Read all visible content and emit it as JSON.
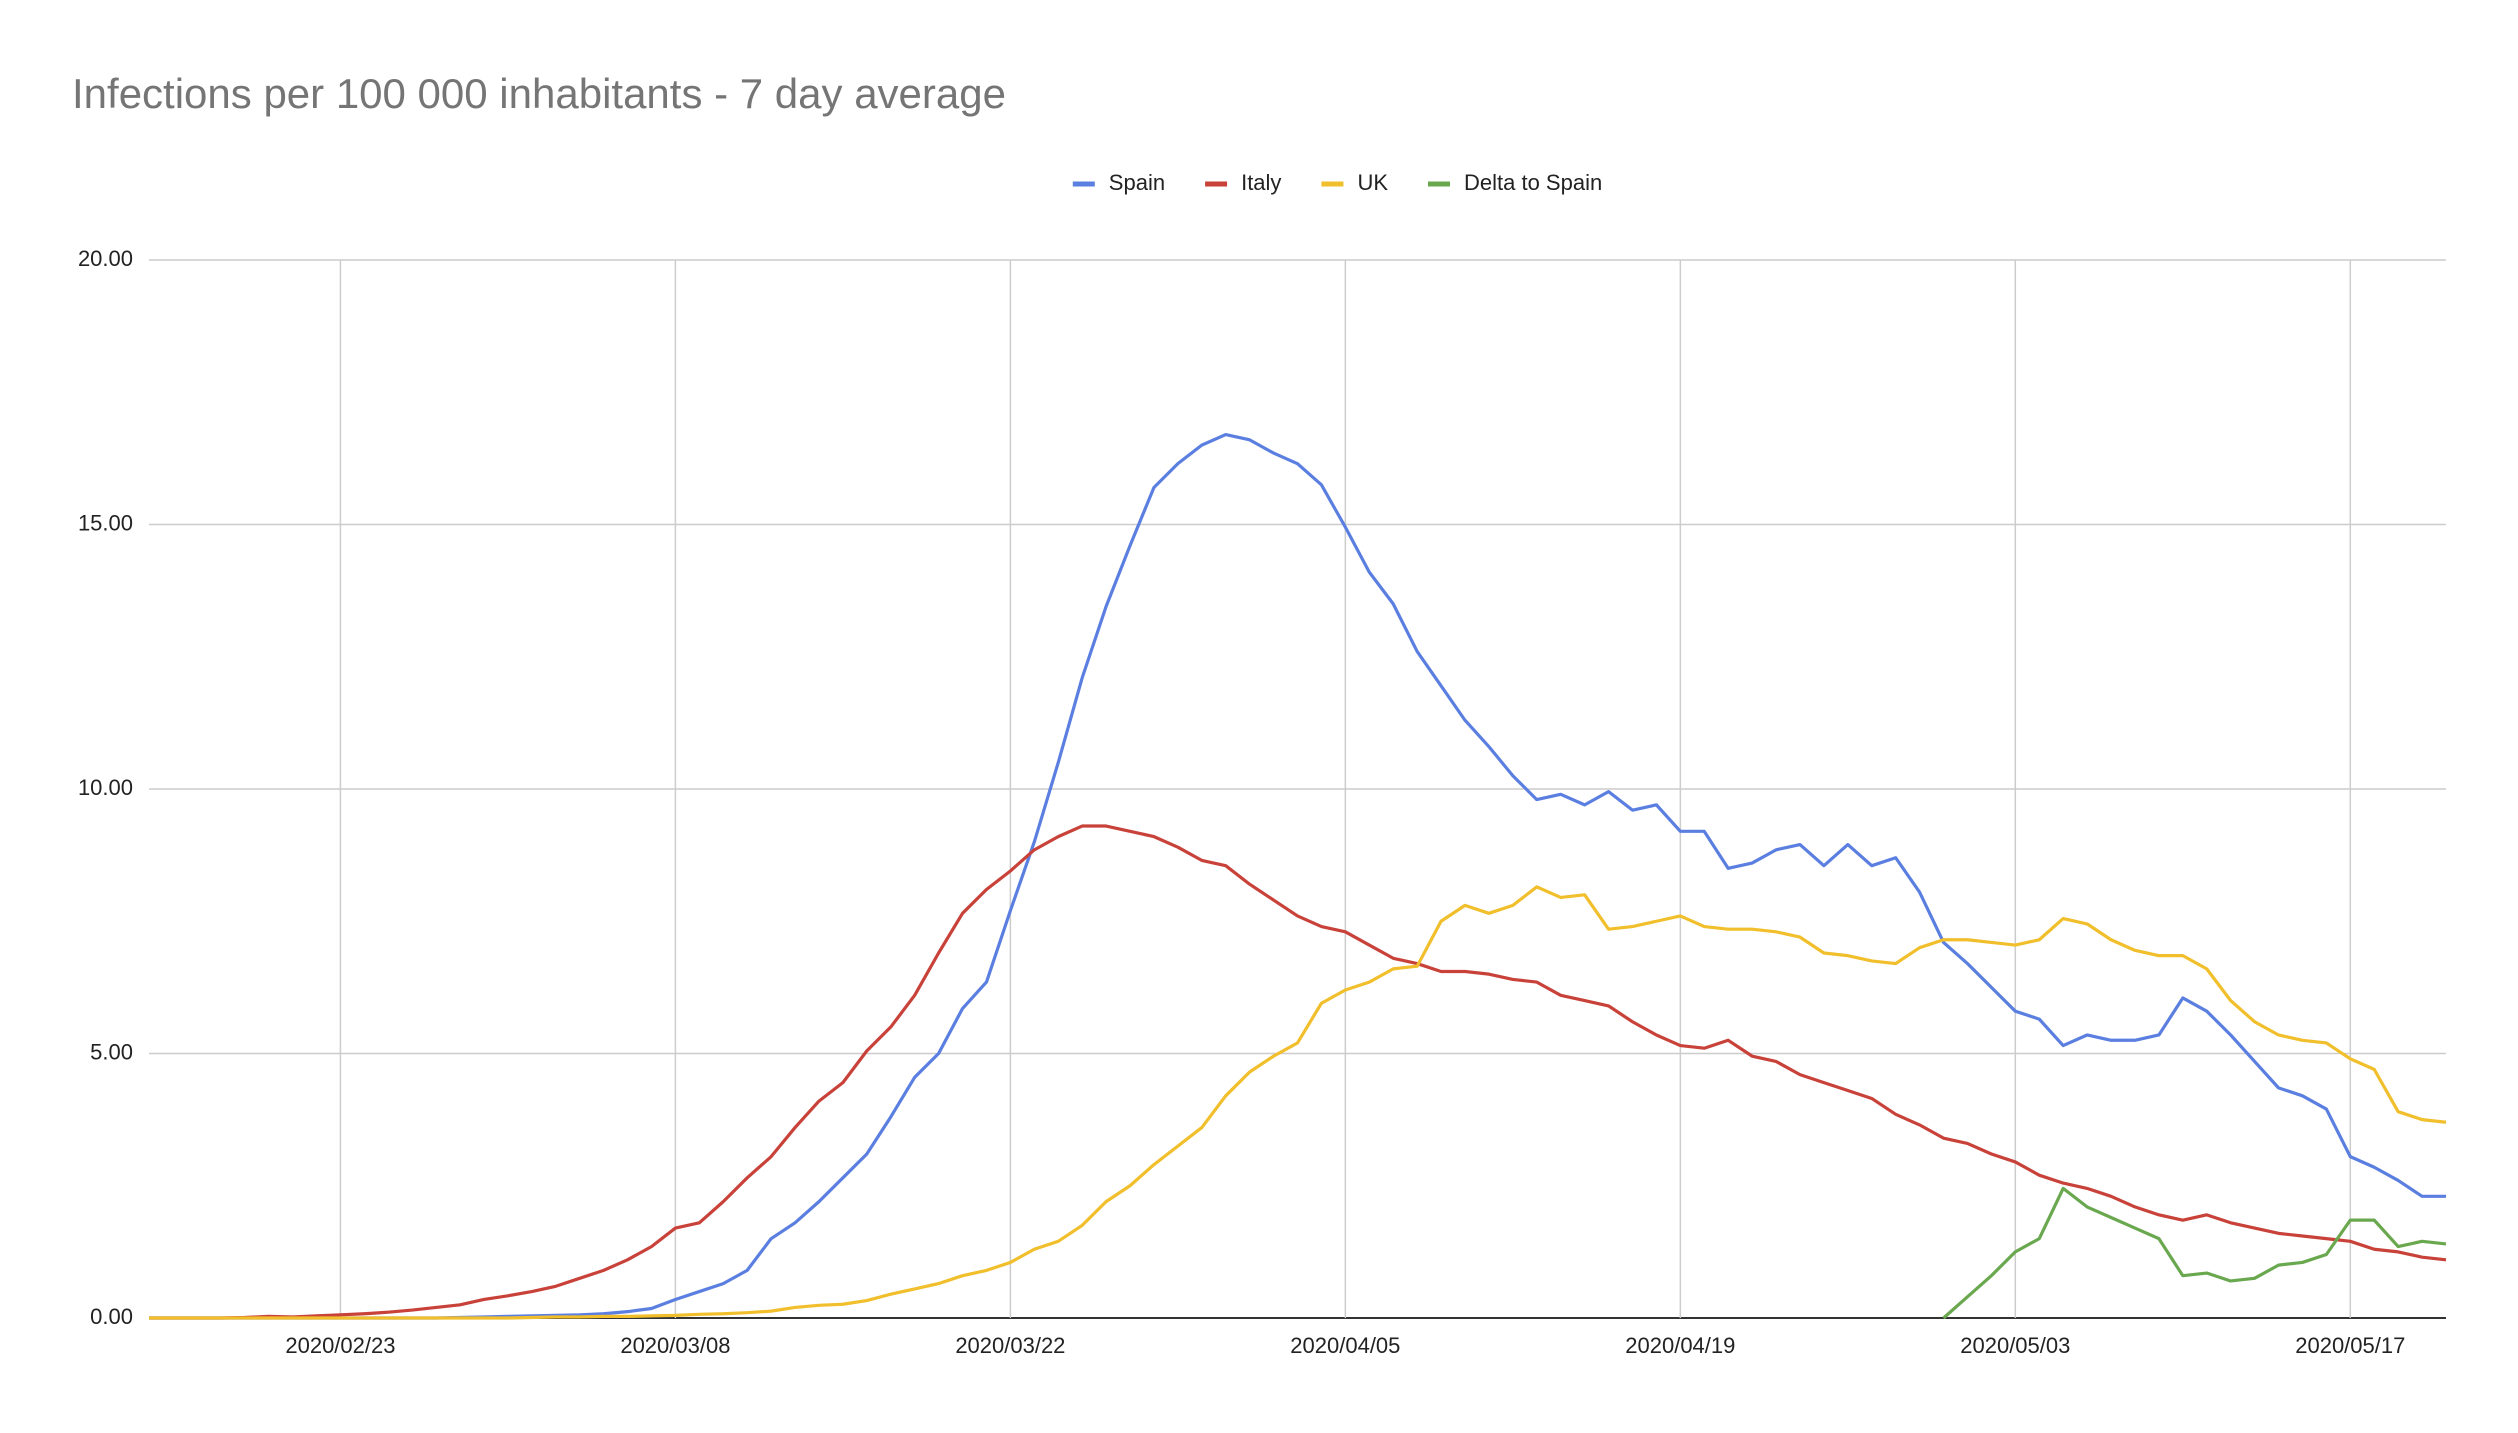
{
  "chart_data": {
    "type": "line",
    "title": "Infections per 100 000 inhabitants - 7 day average",
    "x": [
      "2020/02/15",
      "2020/02/16",
      "2020/02/17",
      "2020/02/18",
      "2020/02/19",
      "2020/02/20",
      "2020/02/21",
      "2020/02/22",
      "2020/02/23",
      "2020/02/24",
      "2020/02/25",
      "2020/02/26",
      "2020/02/27",
      "2020/02/28",
      "2020/02/29",
      "2020/03/01",
      "2020/03/02",
      "2020/03/03",
      "2020/03/04",
      "2020/03/05",
      "2020/03/06",
      "2020/03/07",
      "2020/03/08",
      "2020/03/09",
      "2020/03/10",
      "2020/03/11",
      "2020/03/12",
      "2020/03/13",
      "2020/03/14",
      "2020/03/15",
      "2020/03/16",
      "2020/03/17",
      "2020/03/18",
      "2020/03/19",
      "2020/03/20",
      "2020/03/21",
      "2020/03/22",
      "2020/03/23",
      "2020/03/24",
      "2020/03/25",
      "2020/03/26",
      "2020/03/27",
      "2020/03/28",
      "2020/03/29",
      "2020/03/30",
      "2020/03/31",
      "2020/04/01",
      "2020/04/02",
      "2020/04/03",
      "2020/04/04",
      "2020/04/05",
      "2020/04/06",
      "2020/04/07",
      "2020/04/08",
      "2020/04/09",
      "2020/04/10",
      "2020/04/11",
      "2020/04/12",
      "2020/04/13",
      "2020/04/14",
      "2020/04/15",
      "2020/04/16",
      "2020/04/17",
      "2020/04/18",
      "2020/04/19",
      "2020/04/20",
      "2020/04/21",
      "2020/04/22",
      "2020/04/23",
      "2020/04/24",
      "2020/04/25",
      "2020/04/26",
      "2020/04/27",
      "2020/04/28",
      "2020/04/29",
      "2020/04/30",
      "2020/05/01",
      "2020/05/02",
      "2020/05/03",
      "2020/05/04",
      "2020/05/05",
      "2020/05/06",
      "2020/05/07",
      "2020/05/08",
      "2020/05/09",
      "2020/05/10",
      "2020/05/11",
      "2020/05/12",
      "2020/05/13",
      "2020/05/14",
      "2020/05/15",
      "2020/05/16",
      "2020/05/17",
      "2020/05/18",
      "2020/05/19",
      "2020/05/20",
      "2020/05/21"
    ],
    "xlim": [
      "2020/02/15",
      "2020/05/21"
    ],
    "xticks": [
      "2020/02/23",
      "2020/03/08",
      "2020/03/22",
      "2020/04/05",
      "2020/04/19",
      "2020/05/03",
      "2020/05/17"
    ],
    "ylim": [
      0,
      20
    ],
    "yticks": [
      {
        "value": 0,
        "label": "0.00"
      },
      {
        "value": 5,
        "label": "5.00"
      },
      {
        "value": 10,
        "label": "10.00"
      },
      {
        "value": 15,
        "label": "15.00"
      },
      {
        "value": 20,
        "label": "20.00"
      }
    ],
    "grid": true,
    "legend": "top",
    "series": [
      {
        "name": "Spain",
        "color": "#5b7fe0",
        "values": [
          0,
          0,
          0,
          0,
          0,
          0,
          0,
          0,
          0,
          0,
          0,
          0,
          0,
          0.01,
          0.02,
          0.03,
          0.04,
          0.05,
          0.06,
          0.08,
          0.12,
          0.18,
          0.35,
          0.5,
          0.65,
          0.9,
          1.5,
          1.8,
          2.2,
          2.65,
          3.1,
          3.8,
          4.55,
          5.0,
          5.85,
          6.35,
          7.7,
          9.0,
          10.5,
          12.1,
          13.45,
          14.6,
          15.7,
          16.15,
          16.5,
          16.7,
          16.6,
          16.35,
          16.15,
          15.75,
          14.95,
          14.1,
          13.5,
          12.6,
          11.95,
          11.3,
          10.8,
          10.25,
          9.8,
          9.9,
          9.7,
          9.95,
          9.6,
          9.7,
          9.2,
          9.2,
          8.5,
          8.6,
          8.85,
          8.95,
          8.55,
          8.95,
          8.55,
          8.7,
          8.05,
          7.1,
          6.7,
          6.25,
          5.8,
          5.65,
          5.15,
          5.35,
          5.25,
          5.25,
          5.35,
          6.05,
          5.8,
          5.35,
          4.85,
          4.35,
          4.2,
          3.95,
          3.05,
          2.85,
          2.6,
          2.3,
          2.3
        ]
      },
      {
        "name": "Italy",
        "color": "#c8423a",
        "values": [
          0,
          0,
          0,
          0,
          0.01,
          0.03,
          0.02,
          0.04,
          0.06,
          0.08,
          0.11,
          0.15,
          0.2,
          0.25,
          0.35,
          0.42,
          0.5,
          0.6,
          0.75,
          0.9,
          1.1,
          1.35,
          1.7,
          1.8,
          2.2,
          2.65,
          3.05,
          3.6,
          4.1,
          4.45,
          5.05,
          5.5,
          6.1,
          6.9,
          7.65,
          8.1,
          8.45,
          8.85,
          9.1,
          9.3,
          9.3,
          9.2,
          9.1,
          8.9,
          8.65,
          8.55,
          8.2,
          7.9,
          7.6,
          7.4,
          7.3,
          7.05,
          6.8,
          6.7,
          6.55,
          6.55,
          6.5,
          6.4,
          6.35,
          6.1,
          6.0,
          5.9,
          5.6,
          5.35,
          5.15,
          5.1,
          5.25,
          4.95,
          4.85,
          4.6,
          4.45,
          4.3,
          4.15,
          3.85,
          3.65,
          3.4,
          3.3,
          3.1,
          2.95,
          2.7,
          2.55,
          2.45,
          2.3,
          2.1,
          1.95,
          1.85,
          1.95,
          1.8,
          1.7,
          1.6,
          1.55,
          1.5,
          1.45,
          1.3,
          1.25,
          1.15,
          1.1
        ]
      },
      {
        "name": "UK",
        "color": "#f1bf2c",
        "values": [
          0,
          0,
          0,
          0,
          0,
          0,
          0,
          0,
          0,
          0,
          0,
          0,
          0,
          0,
          0,
          0,
          0.01,
          0.02,
          0.02,
          0.03,
          0.03,
          0.04,
          0.05,
          0.07,
          0.08,
          0.1,
          0.13,
          0.2,
          0.24,
          0.26,
          0.33,
          0.45,
          0.55,
          0.65,
          0.8,
          0.9,
          1.05,
          1.3,
          1.45,
          1.75,
          2.2,
          2.5,
          2.9,
          3.25,
          3.6,
          4.2,
          4.65,
          4.95,
          5.2,
          5.95,
          6.2,
          6.35,
          6.6,
          6.65,
          7.5,
          7.8,
          7.65,
          7.8,
          8.15,
          7.95,
          8.0,
          7.35,
          7.4,
          7.5,
          7.6,
          7.4,
          7.35,
          7.35,
          7.3,
          7.2,
          6.9,
          6.85,
          6.75,
          6.7,
          7.0,
          7.15,
          7.15,
          7.1,
          7.05,
          7.15,
          7.55,
          7.45,
          7.15,
          6.95,
          6.85,
          6.85,
          6.6,
          6.0,
          5.6,
          5.35,
          5.25,
          5.2,
          4.9,
          4.7,
          3.9,
          3.75,
          3.7
        ]
      },
      {
        "name": "Delta to Spain",
        "color": "#6aa84f",
        "values": [
          null,
          null,
          null,
          null,
          null,
          null,
          null,
          null,
          null,
          null,
          null,
          null,
          null,
          null,
          null,
          null,
          null,
          null,
          null,
          null,
          null,
          null,
          null,
          null,
          null,
          null,
          null,
          null,
          null,
          null,
          null,
          null,
          null,
          null,
          null,
          null,
          null,
          null,
          null,
          null,
          null,
          null,
          null,
          null,
          null,
          null,
          null,
          null,
          null,
          null,
          null,
          null,
          null,
          null,
          null,
          null,
          null,
          null,
          null,
          null,
          null,
          null,
          null,
          null,
          null,
          null,
          null,
          null,
          null,
          null,
          null,
          null,
          null,
          null,
          null,
          0,
          0.4,
          0.8,
          1.25,
          1.5,
          2.45,
          2.1,
          1.9,
          1.7,
          1.5,
          0.8,
          0.85,
          0.7,
          0.75,
          1.0,
          1.05,
          1.2,
          1.85,
          1.85,
          1.35,
          1.45,
          1.4
        ]
      }
    ]
  }
}
